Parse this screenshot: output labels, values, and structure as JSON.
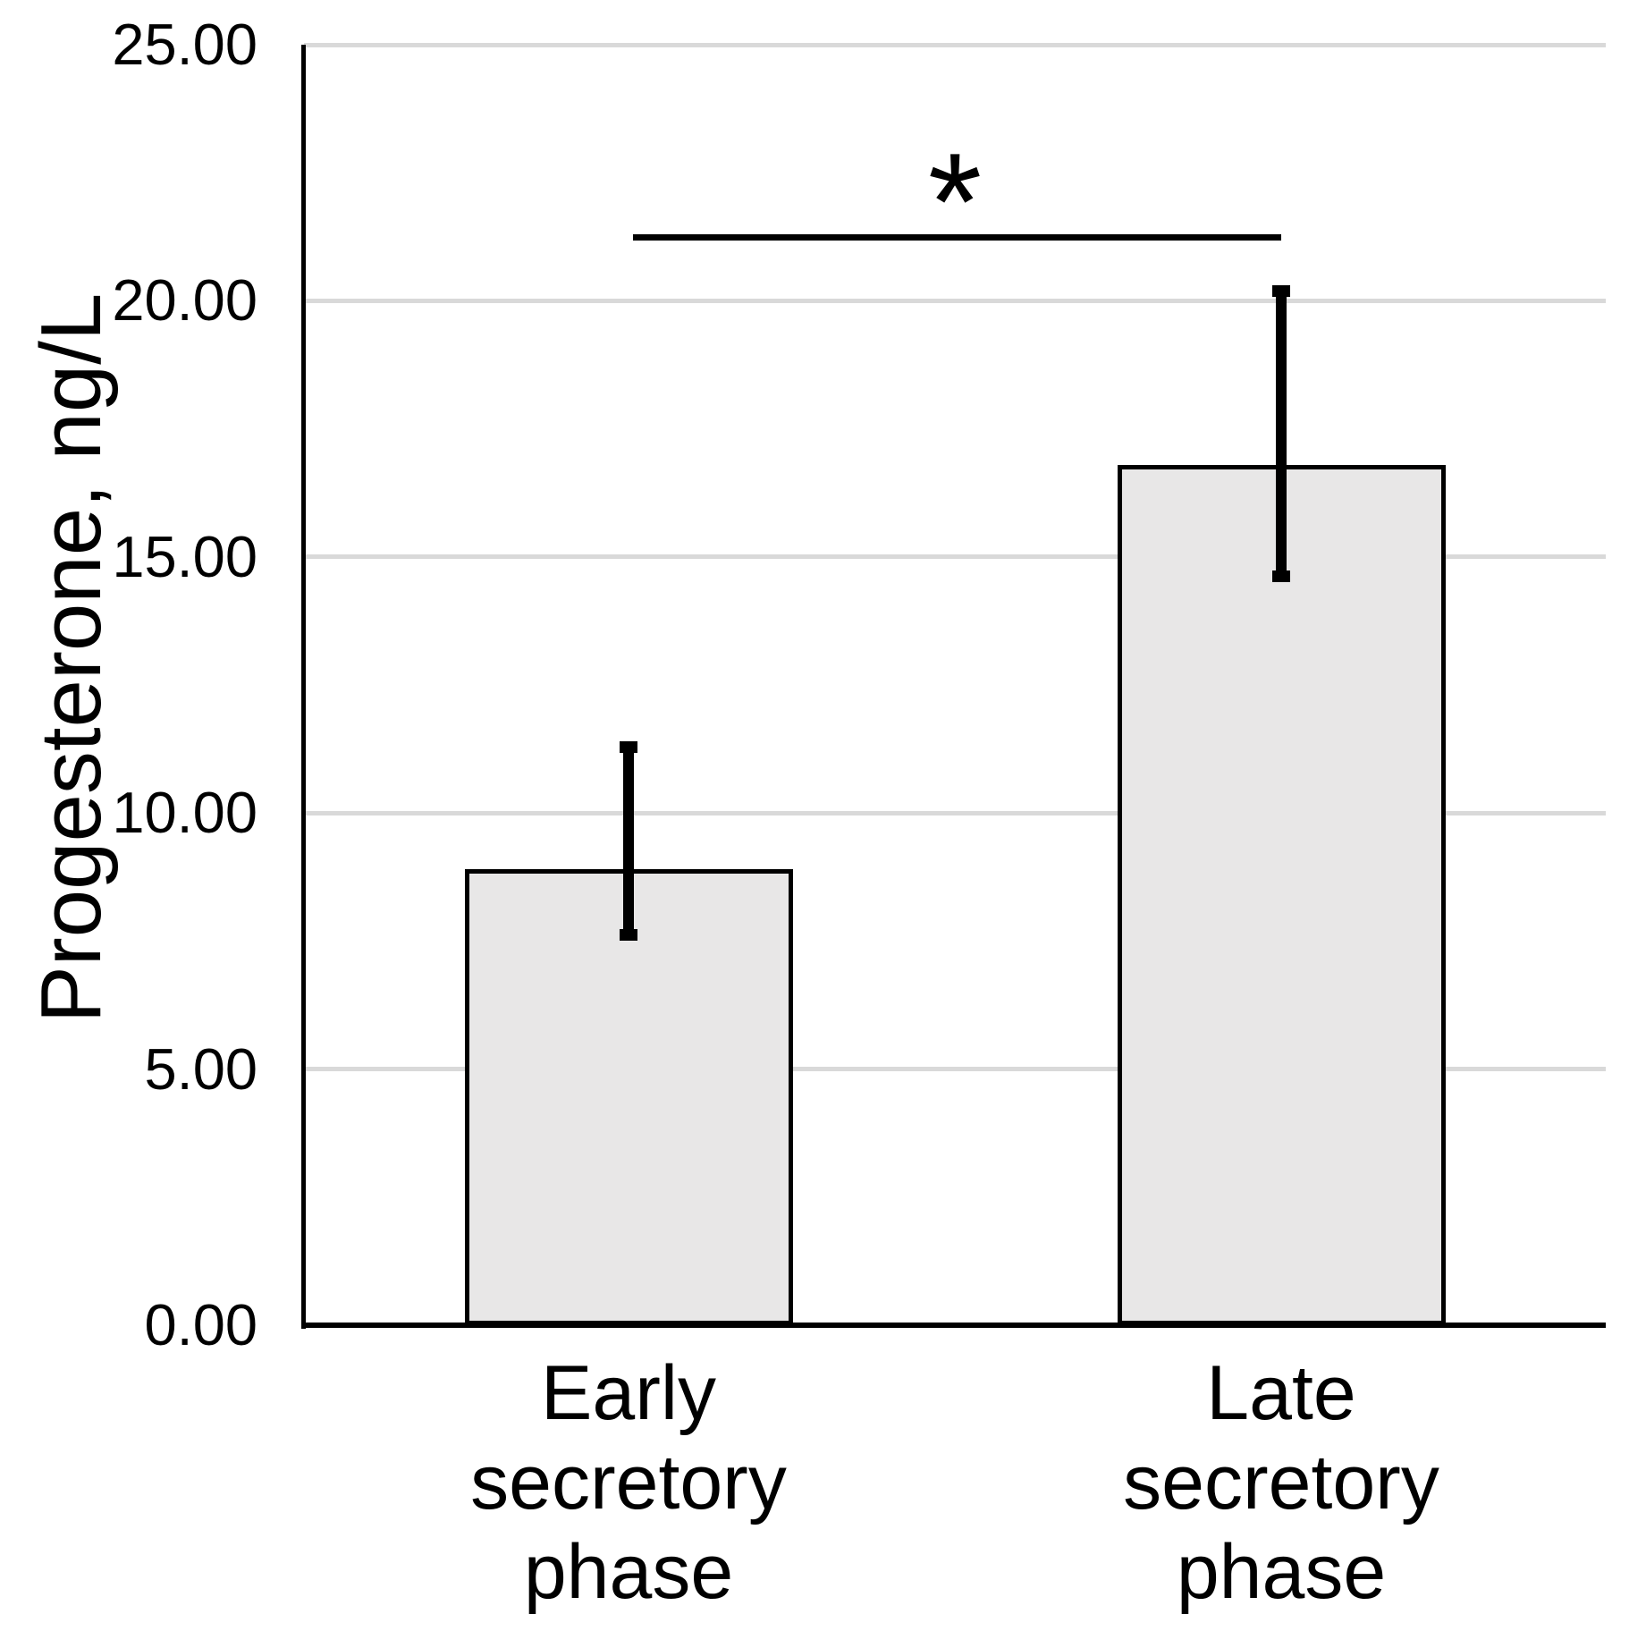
{
  "chart_data": {
    "type": "bar",
    "title": "",
    "ylabel": "Progesterone, ng/L",
    "xlabel": "",
    "ylim": [
      0,
      25
    ],
    "ytick_step": 5,
    "ytick_labels": [
      "0.00",
      "5.00",
      "10.00",
      "15.00",
      "20.00",
      "25.00"
    ],
    "grid": true,
    "legend": "none",
    "categories": [
      "Early secretory phase",
      "Late secretory phase"
    ],
    "category_lines": [
      [
        "Early",
        "secretory",
        "phase"
      ],
      [
        "Late",
        "secretory",
        "phase"
      ]
    ],
    "series": [
      {
        "name": "Progesterone, ng/L",
        "values": [
          8.9,
          16.8
        ],
        "error_high": [
          11.4,
          20.3
        ],
        "error_low": [
          7.5,
          14.5
        ]
      }
    ],
    "significance": {
      "symbol": "*",
      "between": [
        "Early secretory phase",
        "Late secretory phase"
      ],
      "bracket_y_value": 21.3
    }
  },
  "colors": {
    "background": "#ffffff",
    "bar_fill": "#e8e7e7",
    "bar_border": "#000000",
    "gridline": "#d9d9d9",
    "axis": "#000000",
    "text": "#000000"
  }
}
